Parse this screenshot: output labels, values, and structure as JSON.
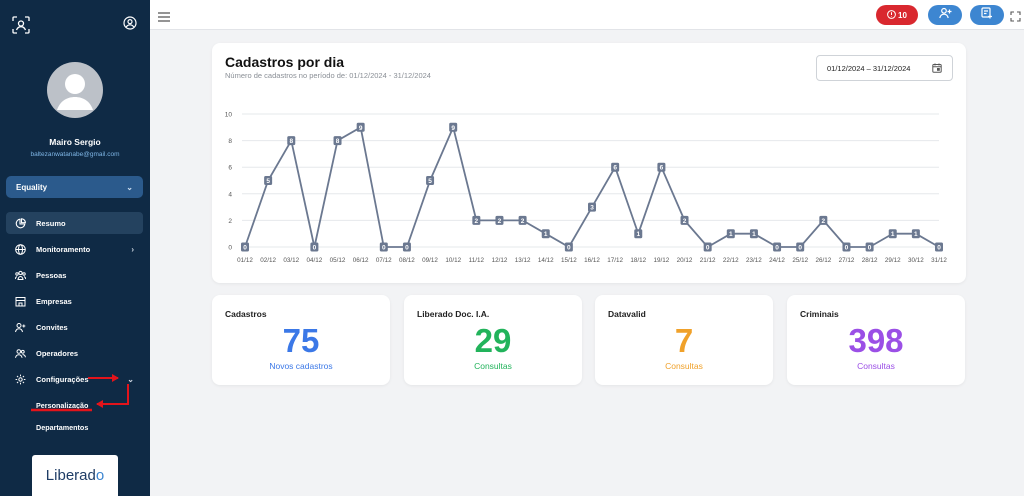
{
  "sidebar": {
    "user": {
      "name": "Mairo Sergio",
      "email": "baltezanwatanabe@gmail.com"
    },
    "company": "Equality",
    "nav": [
      {
        "label": "Resumo",
        "icon": "pie-chart-icon",
        "active": true
      },
      {
        "label": "Monitoramento",
        "icon": "globe-icon",
        "has_arrow": true
      },
      {
        "label": "Pessoas",
        "icon": "people-icon"
      },
      {
        "label": "Empresas",
        "icon": "building-icon"
      },
      {
        "label": "Convites",
        "icon": "user-plus-icon"
      },
      {
        "label": "Operadores",
        "icon": "users-icon"
      },
      {
        "label": "Configurações",
        "icon": "gear-icon",
        "expanded": true
      }
    ],
    "subnav": [
      "Personalização",
      "Departamentos"
    ],
    "brand": {
      "text": "Liberad",
      "mark": "o"
    }
  },
  "header": {
    "alert_count": "10",
    "accent": "#3d86d1",
    "alert_color": "#d9282f"
  },
  "chart": {
    "title": "Cadastros por dia",
    "subtitle": "Número de cadastros no período de: 01/12/2024 - 31/12/2024",
    "date_range": "01/12/2024 – 31/12/2024"
  },
  "chart_data": {
    "type": "line",
    "categories": [
      "01/12",
      "02/12",
      "03/12",
      "04/12",
      "05/12",
      "06/12",
      "07/12",
      "08/12",
      "09/12",
      "10/12",
      "11/12",
      "12/12",
      "13/12",
      "14/12",
      "15/12",
      "16/12",
      "17/12",
      "18/12",
      "19/12",
      "20/12",
      "21/12",
      "22/12",
      "23/12",
      "24/12",
      "25/12",
      "26/12",
      "27/12",
      "28/12",
      "29/12",
      "30/12",
      "31/12"
    ],
    "values": [
      0,
      5,
      8,
      0,
      8,
      9,
      0,
      0,
      5,
      9,
      2,
      2,
      2,
      1,
      0,
      3,
      6,
      1,
      6,
      2,
      0,
      1,
      1,
      0,
      0,
      2,
      0,
      0,
      1,
      1,
      0
    ],
    "ylim": [
      0,
      10
    ],
    "yticks": [
      0,
      2,
      4,
      6,
      8,
      10
    ],
    "grid": true,
    "line_color": "#6b7890"
  },
  "stats": [
    {
      "title": "Cadastros",
      "value": "75",
      "label": "Novos cadastros",
      "color": "#3b78e7"
    },
    {
      "title": "Liberado Doc. I.A.",
      "value": "29",
      "label": "Consultas",
      "color": "#22b35b"
    },
    {
      "title": "Datavalid",
      "value": "7",
      "label": "Consultas",
      "color": "#f0a12a"
    },
    {
      "title": "Criminais",
      "value": "398",
      "label": "Consultas",
      "color": "#9b4fe6"
    }
  ]
}
